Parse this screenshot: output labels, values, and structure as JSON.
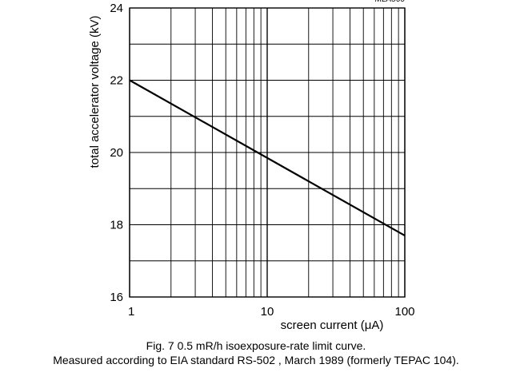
{
  "chart_data": {
    "type": "line",
    "figure_id": "MLA566",
    "ylabel": "total accelerator voltage (kV)",
    "xlabel": "screen current (μA)",
    "x_scale": "log",
    "xlim": [
      1,
      100
    ],
    "ylim": [
      16,
      24
    ],
    "x_ticks": [
      {
        "value": 1,
        "label": "1"
      },
      {
        "value": 10,
        "label": "10"
      },
      {
        "value": 100,
        "label": "100"
      }
    ],
    "y_ticks": [
      {
        "value": 16,
        "label": "16"
      },
      {
        "value": 18,
        "label": "18"
      },
      {
        "value": 20,
        "label": "20"
      },
      {
        "value": 22,
        "label": "22"
      },
      {
        "value": 24,
        "label": "24"
      }
    ],
    "grid": true,
    "series": [
      {
        "x": [
          1,
          100
        ],
        "y": [
          22.0,
          17.7
        ]
      }
    ],
    "line_color": "#000000",
    "grid_color": "#000000"
  },
  "caption": {
    "line1": "Fig. 7  0.5 mR/h isoexposure-rate limit curve.",
    "line2": "Measured according to EIA standard RS-502 , March 1989 (formerly TEPAC 104)."
  }
}
